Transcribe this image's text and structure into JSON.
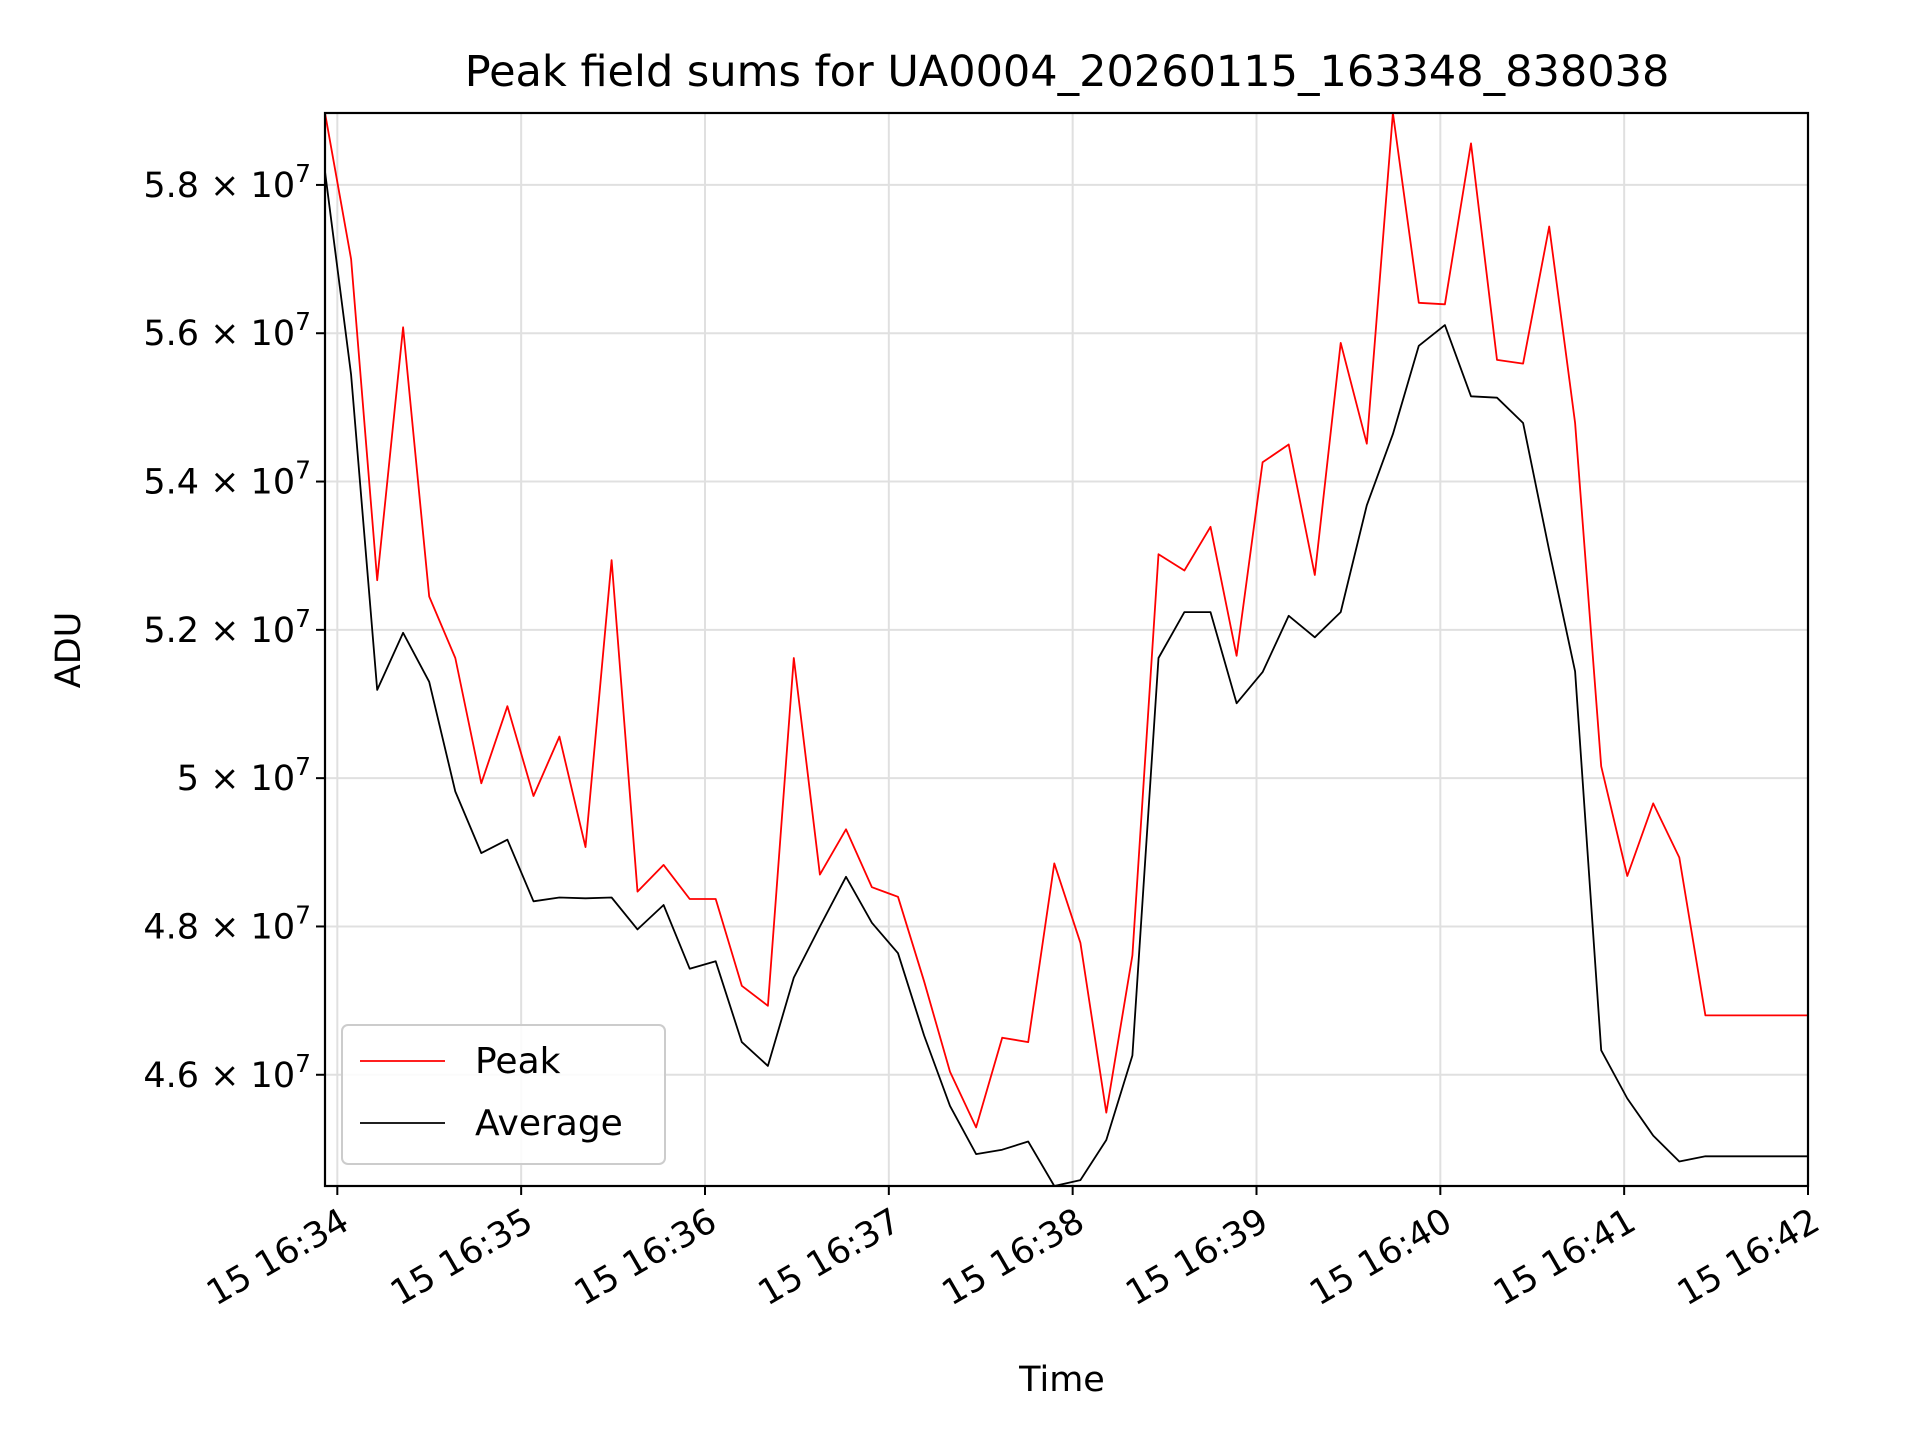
{
  "chart_data": {
    "type": "line",
    "title": "Peak field sums for UA0004_20260115_163348_838038",
    "xlabel": "Time",
    "ylabel": "ADU",
    "grid": true,
    "legend_position": "lower-left",
    "x_unit": "minutes since 16:33 on day 15",
    "xlim": [
      0.933,
      9.0
    ],
    "ylim": [
      44500000,
      58970000
    ],
    "x_ticks": [
      {
        "value": 1,
        "label": "15 16:34"
      },
      {
        "value": 2,
        "label": "15 16:35"
      },
      {
        "value": 3,
        "label": "15 16:36"
      },
      {
        "value": 4,
        "label": "15 16:37"
      },
      {
        "value": 5,
        "label": "15 16:38"
      },
      {
        "value": 6,
        "label": "15 16:39"
      },
      {
        "value": 7,
        "label": "15 16:40"
      },
      {
        "value": 8,
        "label": "15 16:41"
      },
      {
        "value": 9,
        "label": "15 16:42"
      }
    ],
    "y_ticks": [
      {
        "value": 46000000,
        "mantissa": "4.6",
        "base": "10",
        "exp": "7"
      },
      {
        "value": 48000000,
        "mantissa": "4.8",
        "base": "10",
        "exp": "7"
      },
      {
        "value": 50000000,
        "mantissa": "5",
        "base": "10",
        "exp": "7"
      },
      {
        "value": 52000000,
        "mantissa": "5.2",
        "base": "10",
        "exp": "7"
      },
      {
        "value": 54000000,
        "mantissa": "5.4",
        "base": "10",
        "exp": "7"
      },
      {
        "value": 56000000,
        "mantissa": "5.6",
        "base": "10",
        "exp": "7"
      },
      {
        "value": 58000000,
        "mantissa": "5.8",
        "base": "10",
        "exp": "7"
      }
    ],
    "x": [
      0.933,
      1.075,
      1.217,
      1.358,
      1.5,
      1.642,
      1.783,
      1.925,
      2.067,
      2.208,
      2.35,
      2.492,
      2.633,
      2.775,
      2.917,
      3.058,
      3.2,
      3.342,
      3.483,
      3.625,
      3.767,
      3.908,
      4.05,
      4.192,
      4.333,
      4.475,
      4.617,
      4.758,
      4.9,
      5.042,
      5.183,
      5.325,
      5.467,
      5.608,
      5.75,
      5.892,
      6.033,
      6.175,
      6.317,
      6.458,
      6.6,
      6.742,
      6.883,
      7.025,
      7.167,
      7.308,
      7.45,
      7.592,
      7.733,
      7.875,
      8.017,
      8.158,
      8.3,
      8.442,
      9.0
    ],
    "series": [
      {
        "name": "Peak",
        "color": "#ff0000",
        "values": [
          58970000,
          57000000,
          52670000,
          56080000,
          52450000,
          51620000,
          49930000,
          50970000,
          49760000,
          50560000,
          49070000,
          52940000,
          48470000,
          48830000,
          48370000,
          48370000,
          47200000,
          46930000,
          51620000,
          48700000,
          49310000,
          48530000,
          48400000,
          47260000,
          46040000,
          45290000,
          46500000,
          46440000,
          48850000,
          47780000,
          45490000,
          47610000,
          53020000,
          52800000,
          53390000,
          51650000,
          54260000,
          54500000,
          52740000,
          55870000,
          54510000,
          58970000,
          56410000,
          56390000,
          58560000,
          55640000,
          55590000,
          57440000,
          54790000,
          50160000,
          48680000,
          49660000,
          48930000,
          46800000,
          46800000
        ]
      },
      {
        "name": "Average",
        "color": "#000000",
        "values": [
          58180000,
          55440000,
          51190000,
          51960000,
          51300000,
          49820000,
          48990000,
          49170000,
          48340000,
          48390000,
          48380000,
          48390000,
          47960000,
          48290000,
          47430000,
          47530000,
          46440000,
          46120000,
          47310000,
          48000000,
          48670000,
          48050000,
          47640000,
          46530000,
          45580000,
          44930000,
          44990000,
          45100000,
          44500000,
          44580000,
          45120000,
          46260000,
          51620000,
          52240000,
          52240000,
          51010000,
          51430000,
          52190000,
          51900000,
          52240000,
          53680000,
          54640000,
          55830000,
          56110000,
          55150000,
          55130000,
          54790000,
          53070000,
          51440000,
          46330000,
          45680000,
          45180000,
          44830000,
          44900000,
          44900000
        ]
      }
    ]
  }
}
